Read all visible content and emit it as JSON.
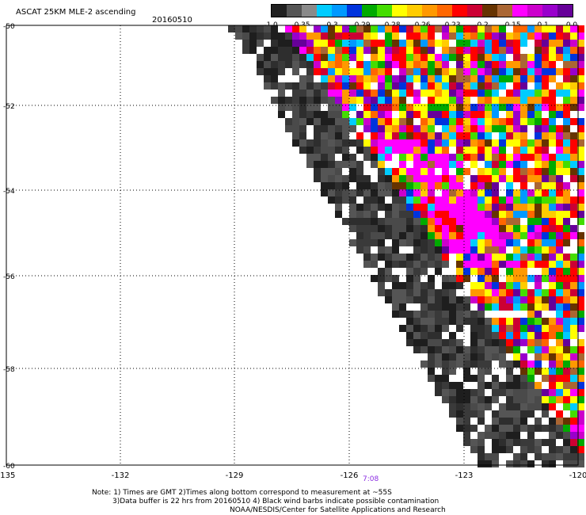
{
  "header": {
    "title": "ASCAT 25KM MLE-2 ascending",
    "date": "20160510"
  },
  "colorbar": {
    "colors": [
      "#202020",
      "#555555",
      "#8a8a8a",
      "#00ccff",
      "#0099ff",
      "#0033dd",
      "#00aa00",
      "#44dd00",
      "#ffff00",
      "#ffcc00",
      "#ff9900",
      "#ff6600",
      "#ff0000",
      "#cc0033",
      "#663300",
      "#aa6633",
      "#ff00ff",
      "#cc00cc",
      "#9900cc",
      "#660099"
    ],
    "labels": [
      "-1.0",
      "-0.35",
      "-0.3",
      "-0.29",
      "-0.28",
      "-0.26",
      "-0.23",
      "-0.2",
      "-0.15",
      "-0.1",
      "0.0"
    ]
  },
  "map": {
    "lon_ticks": [
      "-135",
      "-132",
      "-129",
      "-126",
      "-123",
      "-120"
    ],
    "lat_ticks": [
      "-50",
      "-52",
      "-54",
      "-56",
      "-58",
      "-60"
    ],
    "time_label": "7:08"
  },
  "notes": {
    "line1": "Note: 1) Times are GMT 2)Times along bottom correspond to measurement at ~55S",
    "line2": "3)Data buffer is 22 hrs from 20160510 4) Black wind barbs indicate possible contamination",
    "line3": "NOAA/NESDIS/Center for Satellite Applications and Research"
  }
}
